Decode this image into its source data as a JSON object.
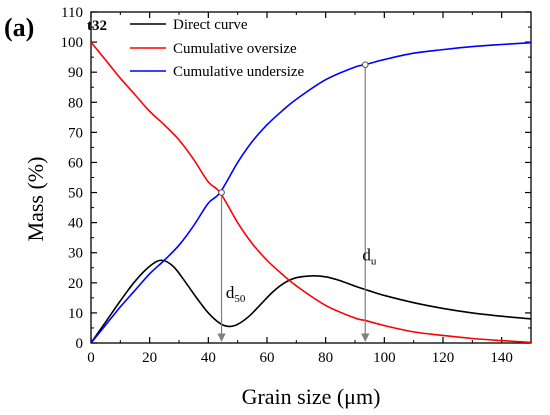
{
  "chart_data": {
    "type": "line",
    "panel_label": "(a)",
    "sample_label": "t32",
    "xlabel": "Grain size (μm)",
    "ylabel": "Mass (%)",
    "xlim": [
      0,
      150
    ],
    "ylim": [
      0,
      110
    ],
    "x_ticks": [
      0,
      20,
      40,
      60,
      80,
      100,
      120,
      140
    ],
    "y_ticks": [
      0,
      10,
      20,
      30,
      40,
      50,
      60,
      70,
      80,
      90,
      100,
      110
    ],
    "grid": false,
    "legend_position": "top-left",
    "series": [
      {
        "name": "Direct curve",
        "color": "#000000",
        "x": [
          0,
          5,
          10,
          15,
          20,
          24,
          28,
          32,
          36,
          40,
          44,
          47,
          50,
          54,
          58,
          62,
          66,
          70,
          75,
          80,
          85,
          90,
          95,
          100,
          110,
          120,
          130,
          140,
          150
        ],
        "y": [
          0,
          7,
          14,
          20.5,
          25.5,
          27.5,
          25.5,
          20.5,
          15,
          10,
          6.5,
          5.5,
          6.2,
          9,
          13,
          17,
          20,
          21.7,
          22.3,
          22,
          20.7,
          18.9,
          17.3,
          15.8,
          13.4,
          11.5,
          10,
          8.9,
          8
        ]
      },
      {
        "name": "Cumulative oversize",
        "color": "#ff0000",
        "x": [
          0,
          5,
          10,
          15,
          20,
          25,
          30,
          35,
          40,
          44,
          50,
          55,
          60,
          65,
          70,
          80,
          90,
          93.5,
          100,
          110,
          120,
          130,
          140,
          150
        ],
        "y": [
          100,
          94,
          88,
          82.5,
          77,
          72.5,
          67.5,
          61,
          53.5,
          50,
          40,
          33,
          27.5,
          23,
          19,
          12.5,
          8.3,
          7.5,
          5.8,
          3.7,
          2.5,
          1.5,
          0.8,
          0.2
        ]
      },
      {
        "name": "Cumulative undersize",
        "color": "#0000ff",
        "x": [
          0,
          5,
          10,
          15,
          20,
          25,
          30,
          35,
          40,
          44,
          50,
          55,
          60,
          65,
          70,
          80,
          90,
          93.5,
          100,
          110,
          120,
          130,
          140,
          150
        ],
        "y": [
          0,
          6,
          12,
          17.5,
          23,
          27.5,
          32.5,
          39,
          46.5,
          50,
          60,
          67,
          72.5,
          77,
          81,
          87.5,
          91.7,
          92.5,
          94.2,
          96.3,
          97.5,
          98.5,
          99.2,
          99.8
        ]
      }
    ],
    "markers": [
      {
        "x": 44.5,
        "y": 50,
        "label_main": "d",
        "label_sub": "50",
        "label_x": 46,
        "label_y": 15
      },
      {
        "x": 93.5,
        "y": 92.5,
        "label_main": "d",
        "label_sub": "u",
        "label_x": 92.5,
        "label_y": 27.5
      }
    ]
  }
}
